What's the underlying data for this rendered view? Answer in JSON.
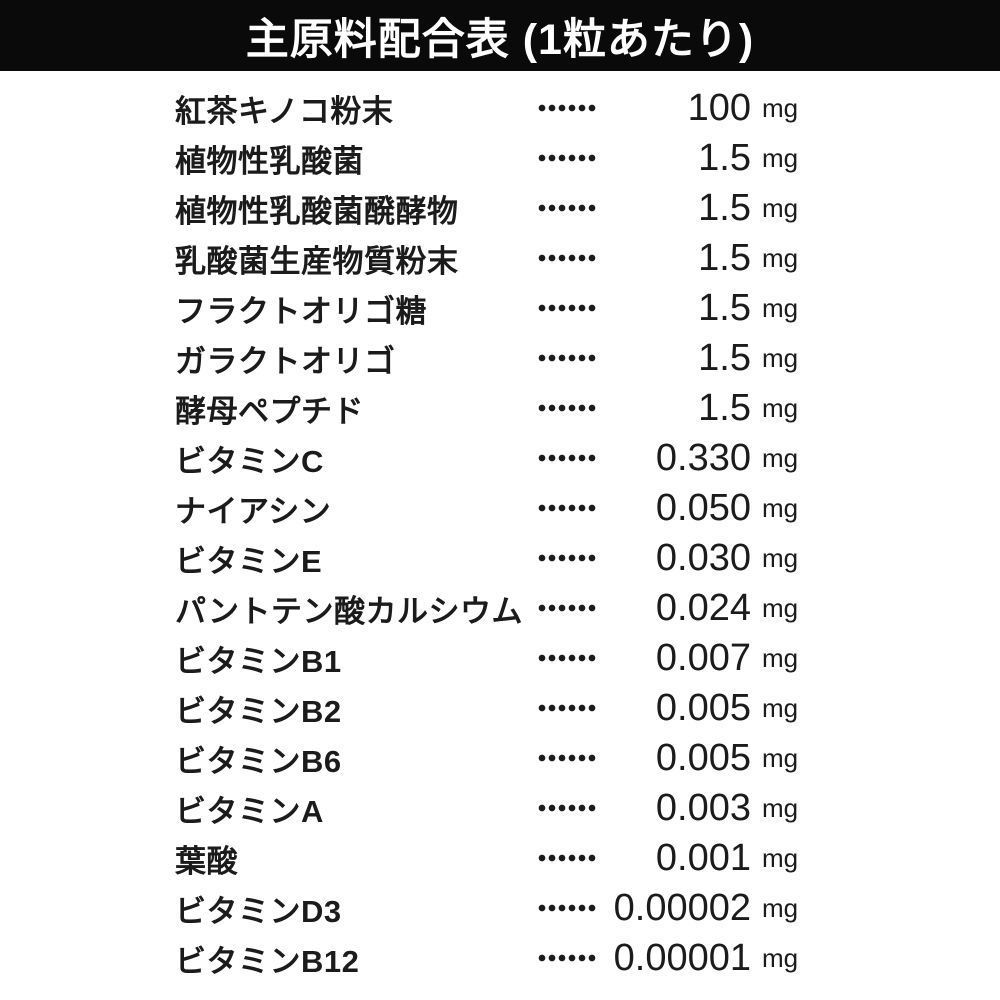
{
  "header": {
    "title": "主原料配合表 (1粒あたり)"
  },
  "table": {
    "unit": "mg",
    "rows": [
      {
        "name": "紅茶キノコ粉末",
        "value": "100"
      },
      {
        "name": "植物性乳酸菌",
        "value": "1.5"
      },
      {
        "name": "植物性乳酸菌醗酵物",
        "value": "1.5"
      },
      {
        "name": "乳酸菌生産物質粉末",
        "value": "1.5"
      },
      {
        "name": "フラクトオリゴ糖",
        "value": "1.5"
      },
      {
        "name": "ガラクトオリゴ",
        "value": "1.5"
      },
      {
        "name": "酵母ペプチド",
        "value": "1.5"
      },
      {
        "name": "ビタミンC",
        "value": "0.330"
      },
      {
        "name": "ナイアシン",
        "value": "0.050"
      },
      {
        "name": "ビタミンE",
        "value": "0.030"
      },
      {
        "name": "パントテン酸カルシウム",
        "value": "0.024"
      },
      {
        "name": "ビタミンB1",
        "value": "0.007"
      },
      {
        "name": "ビタミンB2",
        "value": "0.005"
      },
      {
        "name": "ビタミンB6",
        "value": "0.005"
      },
      {
        "name": "ビタミンA",
        "value": "0.003"
      },
      {
        "name": "葉酸",
        "value": "0.001"
      },
      {
        "name": "ビタミンD3",
        "value": "0.00002"
      },
      {
        "name": "ビタミンB12",
        "value": "0.00001"
      }
    ]
  }
}
